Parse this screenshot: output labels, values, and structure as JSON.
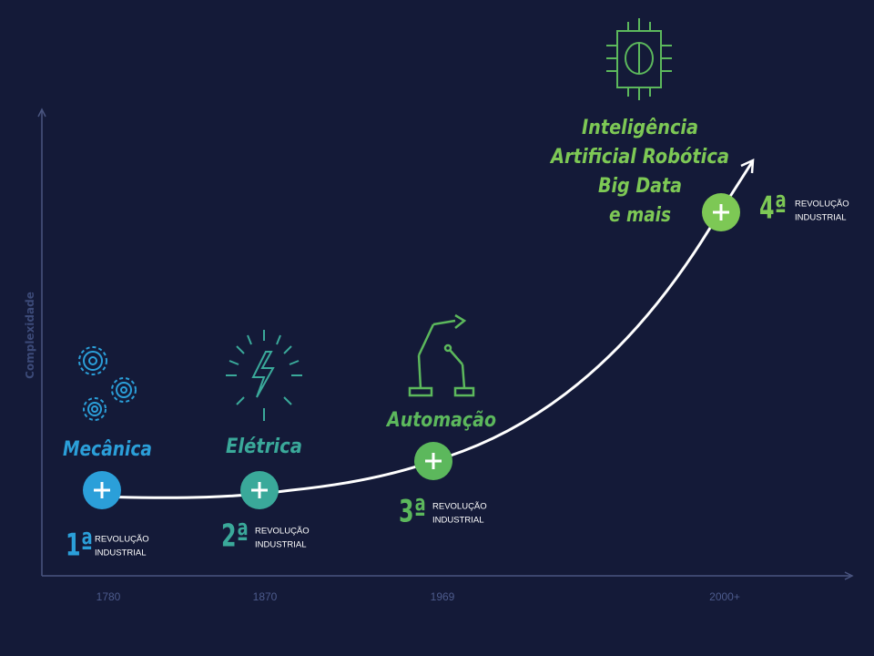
{
  "axis": {
    "y_label": "Complexidade"
  },
  "stages": [
    {
      "title_lines": [
        "Mecânica"
      ],
      "ordinal": "1ª",
      "line1": "REVOLUÇÃO",
      "line2": "INDUSTRIAL",
      "year": "1780"
    },
    {
      "title_lines": [
        "Elétrica"
      ],
      "ordinal": "2ª",
      "line1": "REVOLUÇÃO",
      "line2": "INDUSTRIAL",
      "year": "1870"
    },
    {
      "title_lines": [
        "Automação"
      ],
      "ordinal": "3ª",
      "line1": "REVOLUÇÃO",
      "line2": "INDUSTRIAL",
      "year": "1969"
    },
    {
      "title_lines": [
        "Inteligência",
        "Artificial Robótica",
        "Big Data",
        "e mais"
      ],
      "ordinal": "4ª",
      "line1": "REVOLUÇÃO",
      "line2": "INDUSTRIAL",
      "year": "2000+"
    }
  ]
}
